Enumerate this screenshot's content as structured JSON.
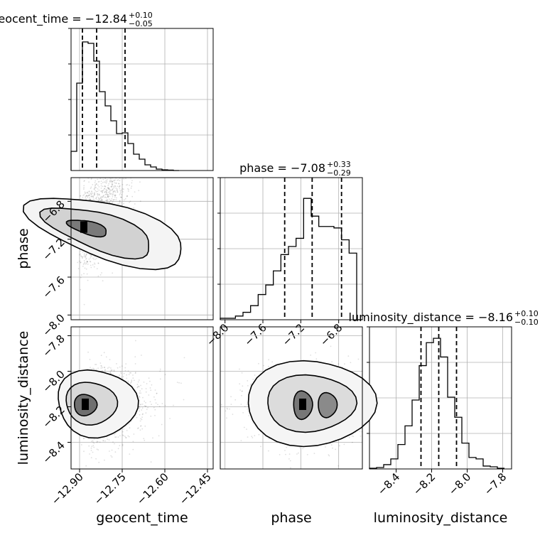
{
  "chart_data": [
    {
      "type": "histogram",
      "panel": "diagonal-1",
      "title": "geocent_time = −12.84",
      "title_sup": "+0.10",
      "title_sub": "−0.05",
      "x_param": "geocent_time",
      "xlim": [
        -12.93,
        -12.43
      ],
      "bin_edges": [
        -12.93,
        -12.91,
        -12.89,
        -12.87,
        -12.85,
        -12.83,
        -12.81,
        -12.79,
        -12.77,
        -12.75,
        -12.73,
        -12.71,
        -12.69,
        -12.67,
        -12.65,
        -12.63,
        -12.61,
        -12.59,
        -12.57,
        -12.55
      ],
      "counts": [
        0.135,
        0.615,
        0.905,
        0.895,
        0.77,
        0.555,
        0.455,
        0.35,
        0.26,
        0.265,
        0.19,
        0.115,
        0.08,
        0.04,
        0.025,
        0.01,
        0.005,
        0.003,
        0.0
      ],
      "ylim": [
        0,
        1.0
      ],
      "quantiles": [
        -12.89,
        -12.84,
        -12.74
      ],
      "grid": true
    },
    {
      "type": "histogram",
      "panel": "diagonal-2",
      "title": "phase = −7.08",
      "title_sup": "+0.33",
      "title_sub": "−0.29",
      "x_param": "phase",
      "xlim": [
        -8.05,
        -6.55
      ],
      "x_ticks": [
        "−8.0",
        "−7.6",
        "−7.2",
        "−6.8"
      ],
      "bin_edges": [
        -8.05,
        -7.97,
        -7.89,
        -7.81,
        -7.73,
        -7.65,
        -7.57,
        -7.49,
        -7.41,
        -7.33,
        -7.25,
        -7.17,
        -7.09,
        -7.01,
        -6.93,
        -6.85,
        -6.77,
        -6.69,
        -6.61,
        -6.55
      ],
      "counts": [
        0.01,
        0.01,
        0.025,
        0.05,
        0.095,
        0.17,
        0.235,
        0.33,
        0.44,
        0.495,
        0.55,
        0.82,
        0.7,
        0.63,
        0.63,
        0.62,
        0.54,
        0.45,
        0.0
      ],
      "ylim": [
        0,
        0.96
      ],
      "quantiles": [
        -7.37,
        -7.08,
        -6.77
      ],
      "grid": true
    },
    {
      "type": "histogram",
      "panel": "diagonal-3",
      "title": "luminosity_distance = −8.16",
      "title_sup": "+0.10",
      "title_sub": "−0.10",
      "x_param": "luminosity_distance",
      "xlim": [
        -8.55,
        -7.75
      ],
      "x_ticks": [
        "−8.4",
        "−8.2",
        "−8.0",
        "−7.8"
      ],
      "bin_edges": [
        -8.55,
        -8.51,
        -8.47,
        -8.43,
        -8.39,
        -8.35,
        -8.31,
        -8.27,
        -8.23,
        -8.19,
        -8.15,
        -8.11,
        -8.07,
        -8.03,
        -7.99,
        -7.95,
        -7.91,
        -7.87,
        -7.83,
        -7.79
      ],
      "counts": [
        0.005,
        0.01,
        0.03,
        0.07,
        0.17,
        0.3,
        0.48,
        0.72,
        0.88,
        0.91,
        0.78,
        0.5,
        0.36,
        0.18,
        0.08,
        0.07,
        0.02,
        0.015,
        0.005
      ],
      "ylim": [
        0,
        0.99
      ],
      "quantiles": [
        -8.26,
        -8.16,
        -8.06
      ],
      "grid": true
    },
    {
      "type": "heatmap",
      "panel": "phase-vs-geocent_time",
      "x_param": "geocent_time",
      "y_param": "phase",
      "xlim": [
        -12.93,
        -12.43
      ],
      "ylim": [
        -8.05,
        -6.55
      ],
      "y_ticks": [
        "−6.8",
        "−7.2",
        "−7.6",
        "−8.0"
      ],
      "mode_x": -12.885,
      "mode_y": -7.08,
      "grid": true
    },
    {
      "type": "heatmap",
      "panel": "luminosity_distance-vs-geocent_time",
      "x_param": "geocent_time",
      "y_param": "luminosity_distance",
      "xlim": [
        -12.93,
        -12.43
      ],
      "ylim": [
        -8.55,
        -7.75
      ],
      "x_ticks": [
        "−12.90",
        "−12.75",
        "−12.60",
        "−12.45"
      ],
      "y_ticks": [
        "−7.8",
        "−8.0",
        "−8.2",
        "−8.4"
      ],
      "mode_x": -12.88,
      "mode_y": -8.19,
      "grid": true
    },
    {
      "type": "heatmap",
      "panel": "luminosity_distance-vs-phase",
      "x_param": "phase",
      "y_param": "luminosity_distance",
      "xlim": [
        -8.05,
        -6.55
      ],
      "ylim": [
        -8.55,
        -7.75
      ],
      "mode_x": -7.18,
      "mode_y": -8.19,
      "grid": true
    }
  ],
  "axis_labels": {
    "x1": "geocent_time",
    "x2": "phase",
    "x3": "luminosity_distance",
    "y2": "phase",
    "y3": "luminosity_distance"
  },
  "colors": {
    "hist_line": "#000000",
    "grid": "#b0b0b0",
    "density_dark": "#000000",
    "points": "#000000"
  }
}
